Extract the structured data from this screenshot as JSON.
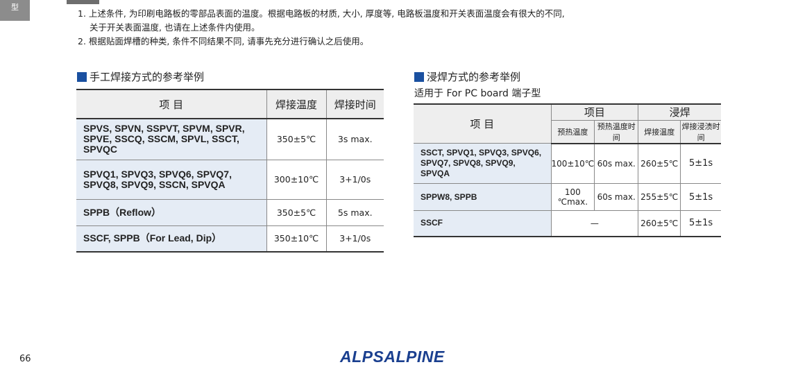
{
  "side_tab": "型",
  "notes": [
    "1. 上述条件, 为印刷电路板的零部品表面的温度。根据电路板的材质, 大小, 厚度等, 电路板温度和开关表面温度会有很大的不同,",
    "关于开关表面温度, 也请在上述条件内使用。",
    "2. 根据贴面焊槽的种类, 条件不同结果不同, 请事先充分进行确认之后使用。"
  ],
  "manual": {
    "title": "手工焊接方式的参考举例",
    "headers": [
      "项 目",
      "焊接温度",
      "焊接时间"
    ],
    "rows": [
      [
        "SPVS, SPVN, SSPVT, SPVM, SPVR, SPVE, SSCQ, SSCM, SPVL, SSCT, SPVQC",
        "350±5℃",
        "3s max."
      ],
      [
        "SPVQ1, SPVQ3, SPVQ6, SPVQ7, SPVQ8, SPVQ9, SSCN, SPVQA",
        "300±10℃",
        "3+1/0s"
      ],
      [
        "SPPB（Reflow）",
        "350±5℃",
        "5s max."
      ],
      [
        "SSCF, SPPB（For Lead, Dip）",
        "350±10℃",
        "3+1/0s"
      ]
    ]
  },
  "dip": {
    "title": "浸焊方式的参考举例",
    "subtitle": "适用于 For PC board 端子型",
    "header_item": "项 目",
    "group1": "项目",
    "group2": "浸焊",
    "sub_headers": [
      "预热温度",
      "预热温度时间",
      "焊接温度",
      "焊接浸渍时间"
    ],
    "rows": [
      [
        "SSCT, SPVQ1, SPVQ3, SPVQ6, SPVQ7, SPVQ8, SPVQ9, SPVQA",
        "100±10℃",
        "60s max.",
        "260±5℃",
        "5±1s"
      ],
      [
        "SPPW8, SPPB",
        "100 ℃max.",
        "60s max.",
        "255±5℃",
        "5±1s"
      ],
      [
        "SSCF",
        "—",
        "260±5℃",
        "5±1s"
      ]
    ]
  },
  "page_number": "66",
  "logo": "ALPSALPINE",
  "colors": {
    "accent": "#1a50a0",
    "logo": "#1a3f8f",
    "item_bg": "#e5ecf5"
  }
}
